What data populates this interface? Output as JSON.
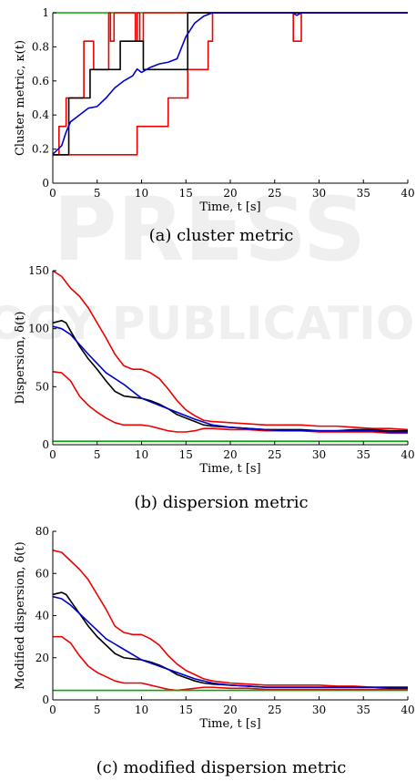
{
  "watermark": [
    "PRESS",
    "OGY PUBLICATIONS"
  ],
  "chart_data": [
    {
      "type": "line",
      "caption": "(a) cluster metric",
      "xlabel": "Time, t [s]",
      "ylabel": "Cluster metric, κ(t)",
      "xlim": [
        0,
        40
      ],
      "ylim": [
        0,
        1
      ],
      "xticks": [
        "0",
        "5",
        "10",
        "15",
        "20",
        "25",
        "30",
        "35",
        "40"
      ],
      "yticks": [
        "0",
        "0.2",
        "0.4",
        "0.6",
        "0.8",
        "1"
      ],
      "colors": {
        "mean": "#000000",
        "median": "#0000cc",
        "bounds": "#ee0000",
        "reference": "#00aa00"
      },
      "series": [
        {
          "role": "reference",
          "color": "#00aa00",
          "step": false,
          "x": [
            0,
            40
          ],
          "y": [
            1,
            1
          ]
        },
        {
          "role": "upper-bound",
          "color": "#ee0000",
          "step": true,
          "x": [
            0,
            0.7,
            1.5,
            3.5,
            4.6,
            6.3,
            6.5,
            6.9,
            9.3,
            9.5,
            9.8,
            10.2,
            27,
            27.1,
            27.8,
            28,
            40
          ],
          "y": [
            0.167,
            0.333,
            0.5,
            0.833,
            0.667,
            1,
            0.833,
            1,
            0.833,
            1,
            0.833,
            1,
            1,
            0.833,
            0.833,
            1,
            1
          ]
        },
        {
          "role": "lower-bound",
          "color": "#ee0000",
          "step": true,
          "x": [
            0,
            9.5,
            13,
            15.2,
            17.5,
            18,
            40
          ],
          "y": [
            0.167,
            0.333,
            0.5,
            0.667,
            0.833,
            1,
            1
          ]
        },
        {
          "role": "mean",
          "color": "#000000",
          "step": true,
          "x": [
            0,
            1.8,
            4.2,
            7.6,
            10.2,
            15.2,
            40
          ],
          "y": [
            0.167,
            0.5,
            0.667,
            0.833,
            0.667,
            1,
            1
          ]
        },
        {
          "role": "median",
          "color": "#0000cc",
          "step": false,
          "x": [
            0,
            1,
            1.5,
            2,
            3,
            4,
            5,
            6,
            7,
            8,
            9,
            9.5,
            10,
            11,
            12,
            13,
            14,
            15,
            16,
            17,
            18,
            27,
            27.5,
            28,
            40
          ],
          "y": [
            0.17,
            0.22,
            0.3,
            0.36,
            0.4,
            0.44,
            0.45,
            0.5,
            0.56,
            0.6,
            0.63,
            0.67,
            0.65,
            0.68,
            0.7,
            0.71,
            0.73,
            0.86,
            0.94,
            0.98,
            1,
            1,
            0.985,
            1,
            1
          ]
        }
      ]
    },
    {
      "type": "line",
      "caption": "(b) dispersion metric",
      "xlabel": "Time, t [s]",
      "ylabel": "Dispersion, δ(t)",
      "xlim": [
        0,
        40
      ],
      "ylim": [
        0,
        150
      ],
      "xticks": [
        "0",
        "5",
        "10",
        "15",
        "20",
        "25",
        "30",
        "35",
        "40"
      ],
      "yticks": [
        "0",
        "50",
        "100",
        "150"
      ],
      "series": [
        {
          "role": "upper-bound",
          "color": "#ee0000",
          "step": false,
          "x": [
            0,
            1,
            2,
            3,
            4,
            5,
            6,
            7,
            8,
            9,
            10,
            11,
            12,
            13,
            14,
            15,
            16,
            17,
            18,
            20,
            22,
            24,
            26,
            28,
            30,
            32,
            34,
            36,
            38,
            40
          ],
          "y": [
            150,
            145,
            135,
            128,
            118,
            105,
            92,
            78,
            68,
            65,
            65,
            62,
            57,
            48,
            38,
            30,
            25,
            21,
            20,
            19,
            18,
            17,
            17,
            17,
            16,
            16,
            15,
            14,
            14,
            13
          ]
        },
        {
          "role": "lower-bound",
          "color": "#ee0000",
          "step": false,
          "x": [
            0,
            1,
            2,
            3,
            4,
            5,
            6,
            7,
            8,
            9,
            10,
            11,
            12,
            13,
            14,
            15,
            16,
            17,
            18,
            20,
            22,
            24,
            26,
            28,
            30,
            32,
            34,
            36,
            38,
            40
          ],
          "y": [
            63,
            62,
            55,
            42,
            34,
            28,
            23,
            19,
            17,
            17,
            17,
            16,
            14,
            12,
            11,
            11,
            12,
            14,
            14,
            13,
            13,
            12,
            12,
            12,
            11,
            11,
            11,
            11,
            10,
            10
          ]
        },
        {
          "role": "mean",
          "color": "#000000",
          "step": false,
          "x": [
            0,
            1,
            1.5,
            2,
            3,
            4,
            5,
            6,
            7,
            8,
            9,
            10,
            11,
            12,
            13,
            14,
            15,
            16,
            17,
            18,
            20,
            22,
            24,
            26,
            28,
            30,
            32,
            34,
            36,
            38,
            40
          ],
          "y": [
            105,
            107,
            105,
            98,
            85,
            74,
            65,
            55,
            46,
            42,
            41,
            40,
            38,
            35,
            31,
            26,
            23,
            20,
            17,
            16,
            15,
            14,
            13,
            13,
            13,
            12,
            12,
            13,
            13,
            12,
            12
          ]
        },
        {
          "role": "median",
          "color": "#0000cc",
          "step": false,
          "x": [
            0,
            1,
            2,
            4,
            6,
            8,
            10,
            12,
            14,
            16,
            18,
            20,
            22,
            24,
            26,
            28,
            30,
            32,
            34,
            36,
            38,
            40
          ],
          "y": [
            102,
            100,
            95,
            78,
            62,
            52,
            40,
            34,
            28,
            22,
            17,
            15,
            14,
            13,
            12,
            12,
            12,
            12,
            12,
            12,
            11,
            11
          ]
        },
        {
          "role": "reference",
          "color": "#00aa00",
          "step": false,
          "x": [
            0,
            40
          ],
          "y": [
            3,
            3
          ]
        }
      ]
    },
    {
      "type": "line",
      "caption": "(c) modified dispersion metric",
      "xlabel": "Time, t [s]",
      "ylabel": "Modified dispersion, δ̃(t)",
      "xlim": [
        0,
        40
      ],
      "ylim": [
        0,
        80
      ],
      "xticks": [
        "0",
        "5",
        "10",
        "15",
        "20",
        "25",
        "30",
        "35",
        "40"
      ],
      "yticks": [
        "0",
        "20",
        "40",
        "60",
        "80"
      ],
      "series": [
        {
          "role": "upper-bound",
          "color": "#ee0000",
          "step": false,
          "x": [
            0,
            1,
            2,
            3,
            4,
            5,
            6,
            7,
            8,
            9,
            10,
            11,
            12,
            13,
            14,
            15,
            16,
            17,
            18,
            20,
            22,
            24,
            26,
            28,
            30,
            32,
            34,
            36,
            38,
            40
          ],
          "y": [
            71,
            70,
            66,
            62,
            57,
            50,
            43,
            35,
            32,
            31,
            31,
            29,
            26,
            21,
            17,
            14,
            12,
            10,
            9,
            8,
            7.5,
            7,
            7,
            7,
            7,
            6.5,
            6.5,
            6,
            6,
            6
          ]
        },
        {
          "role": "lower-bound",
          "color": "#ee0000",
          "step": false,
          "x": [
            0,
            1,
            2,
            3,
            4,
            5,
            6,
            7,
            8,
            9,
            10,
            11,
            12,
            13,
            14,
            15,
            16,
            17,
            18,
            20,
            22,
            24,
            26,
            28,
            30,
            32,
            34,
            36,
            38,
            40
          ],
          "y": [
            30,
            30,
            27,
            21,
            16,
            13,
            11,
            9,
            8,
            8,
            8,
            7,
            6,
            5,
            4.5,
            5,
            5.5,
            6,
            6,
            5.5,
            5.5,
            5,
            5,
            5,
            5,
            5,
            5,
            5,
            5,
            5
          ]
        },
        {
          "role": "mean",
          "color": "#000000",
          "step": false,
          "x": [
            0,
            1,
            1.5,
            2,
            3,
            4,
            5,
            6,
            7,
            8,
            9,
            10,
            11,
            12,
            13,
            14,
            15,
            16,
            17,
            18,
            20,
            22,
            24,
            26,
            28,
            30,
            32,
            34,
            36,
            38,
            40
          ],
          "y": [
            50,
            51,
            50,
            47,
            41,
            35,
            30,
            26,
            22,
            20,
            19.5,
            19,
            18,
            16.5,
            14.5,
            12,
            10.5,
            9,
            8,
            7.5,
            7,
            6.5,
            6,
            6,
            6,
            6,
            6,
            6,
            6,
            6,
            6
          ]
        },
        {
          "role": "median",
          "color": "#0000cc",
          "step": false,
          "x": [
            0,
            1,
            2,
            4,
            6,
            8,
            10,
            12,
            14,
            16,
            18,
            20,
            22,
            24,
            26,
            28,
            30,
            32,
            34,
            36,
            38,
            40
          ],
          "y": [
            49,
            48,
            45,
            37,
            29,
            24,
            19,
            16,
            13,
            10,
            8,
            7,
            6.5,
            6,
            6,
            6,
            6,
            6,
            6,
            6,
            5.5,
            5.5
          ]
        },
        {
          "role": "reference",
          "color": "#00aa00",
          "step": false,
          "x": [
            0,
            40
          ],
          "y": [
            4.5,
            4.5
          ]
        }
      ]
    }
  ]
}
